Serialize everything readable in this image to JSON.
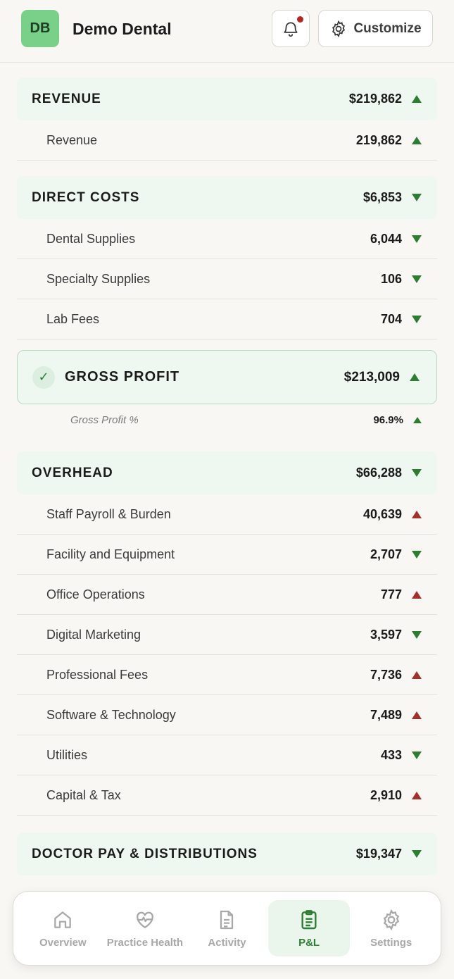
{
  "header": {
    "avatar_initials": "DB",
    "company_name": "Demo Dental",
    "customize_label": "Customize"
  },
  "sections": {
    "revenue": {
      "title": "REVENUE",
      "amount": "$219,862",
      "trend": "up",
      "rows": [
        {
          "label": "Revenue",
          "value": "219,862",
          "trend": "up-green"
        }
      ]
    },
    "direct_costs": {
      "title": "DIRECT COSTS",
      "amount": "$6,853",
      "trend": "down",
      "rows": [
        {
          "label": "Dental Supplies",
          "value": "6,044",
          "trend": "down-green"
        },
        {
          "label": "Specialty Supplies",
          "value": "106",
          "trend": "down-green"
        },
        {
          "label": "Lab Fees",
          "value": "704",
          "trend": "down-green"
        }
      ]
    },
    "gross_profit": {
      "check": "✓",
      "title": "GROSS PROFIT",
      "amount": "$213,009",
      "trend": "up",
      "pct_label": "Gross Profit %",
      "pct_value": "96.9%"
    },
    "overhead": {
      "title": "OVERHEAD",
      "amount": "$66,288",
      "trend": "down",
      "rows": [
        {
          "label": "Staff Payroll & Burden",
          "value": "40,639",
          "trend": "up-red"
        },
        {
          "label": "Facility and Equipment",
          "value": "2,707",
          "trend": "down-green"
        },
        {
          "label": "Office Operations",
          "value": "777",
          "trend": "up-red"
        },
        {
          "label": "Digital Marketing",
          "value": "3,597",
          "trend": "down-green"
        },
        {
          "label": "Professional Fees",
          "value": "7,736",
          "trend": "up-red"
        },
        {
          "label": "Software & Technology",
          "value": "7,489",
          "trend": "up-red"
        },
        {
          "label": "Utilities",
          "value": "433",
          "trend": "down-green"
        },
        {
          "label": "Capital & Tax",
          "value": "2,910",
          "trend": "up-red"
        }
      ]
    },
    "doctor_pay": {
      "title": "DOCTOR PAY & DISTRIBUTIONS",
      "amount": "$19,347",
      "trend": "down"
    }
  },
  "nav": [
    {
      "label": "Overview",
      "icon": "home-icon"
    },
    {
      "label": "Practice Health",
      "icon": "heart-pulse-icon"
    },
    {
      "label": "Activity",
      "icon": "document-icon"
    },
    {
      "label": "P&L",
      "icon": "clipboard-icon",
      "active": true
    },
    {
      "label": "Settings",
      "icon": "gear-icon"
    }
  ],
  "colors": {
    "accent": "#2e7d32",
    "negative": "#a3302a",
    "section_bg": "#eff8f0"
  }
}
